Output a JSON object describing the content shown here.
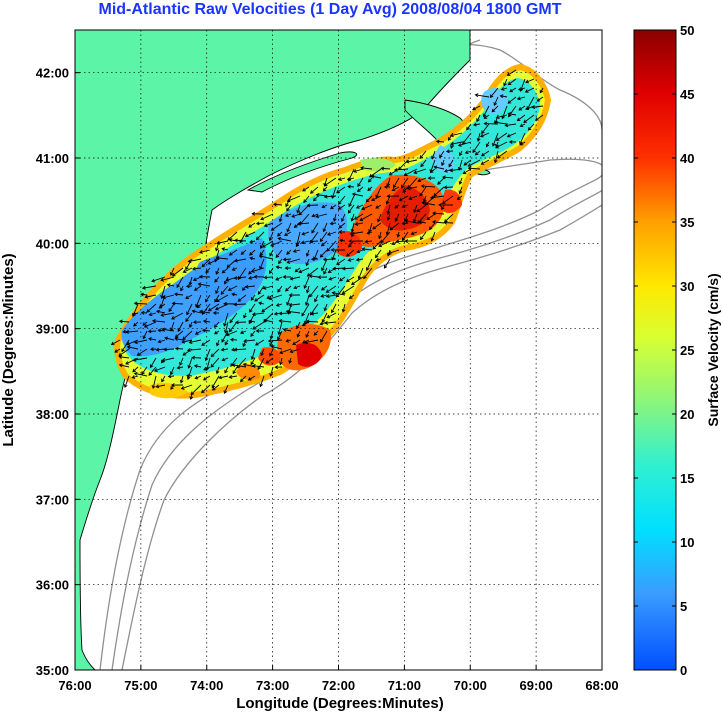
{
  "title": "Mid-Atlantic Raw Velocities (1 Day Avg) 2008/08/04 1800 GMT",
  "map": {
    "xlabel": "Longitude (Degrees:Minutes)",
    "ylabel": "Latitude (Degrees:Minutes)",
    "x_ticks": [
      "76:00",
      "75:00",
      "74:00",
      "73:00",
      "72:00",
      "71:00",
      "70:00",
      "69:00",
      "68:00"
    ],
    "y_ticks": [
      "42:00",
      "41:00",
      "40:00",
      "39:00",
      "38:00",
      "37:00",
      "36:00",
      "35:00"
    ],
    "lon_range": [
      -76,
      -68
    ],
    "lat_range": [
      35,
      42.5
    ],
    "land_color": "#5cf5a8",
    "ocean_color": "#ffffff",
    "grid": "dotted"
  },
  "colorbar": {
    "label": "Surface Velocity (cm/s)",
    "ticks": [
      "50",
      "45",
      "40",
      "35",
      "30",
      "25",
      "20",
      "15",
      "10",
      "5",
      "0"
    ],
    "range": [
      0,
      50
    ],
    "colormap": "jet"
  }
}
